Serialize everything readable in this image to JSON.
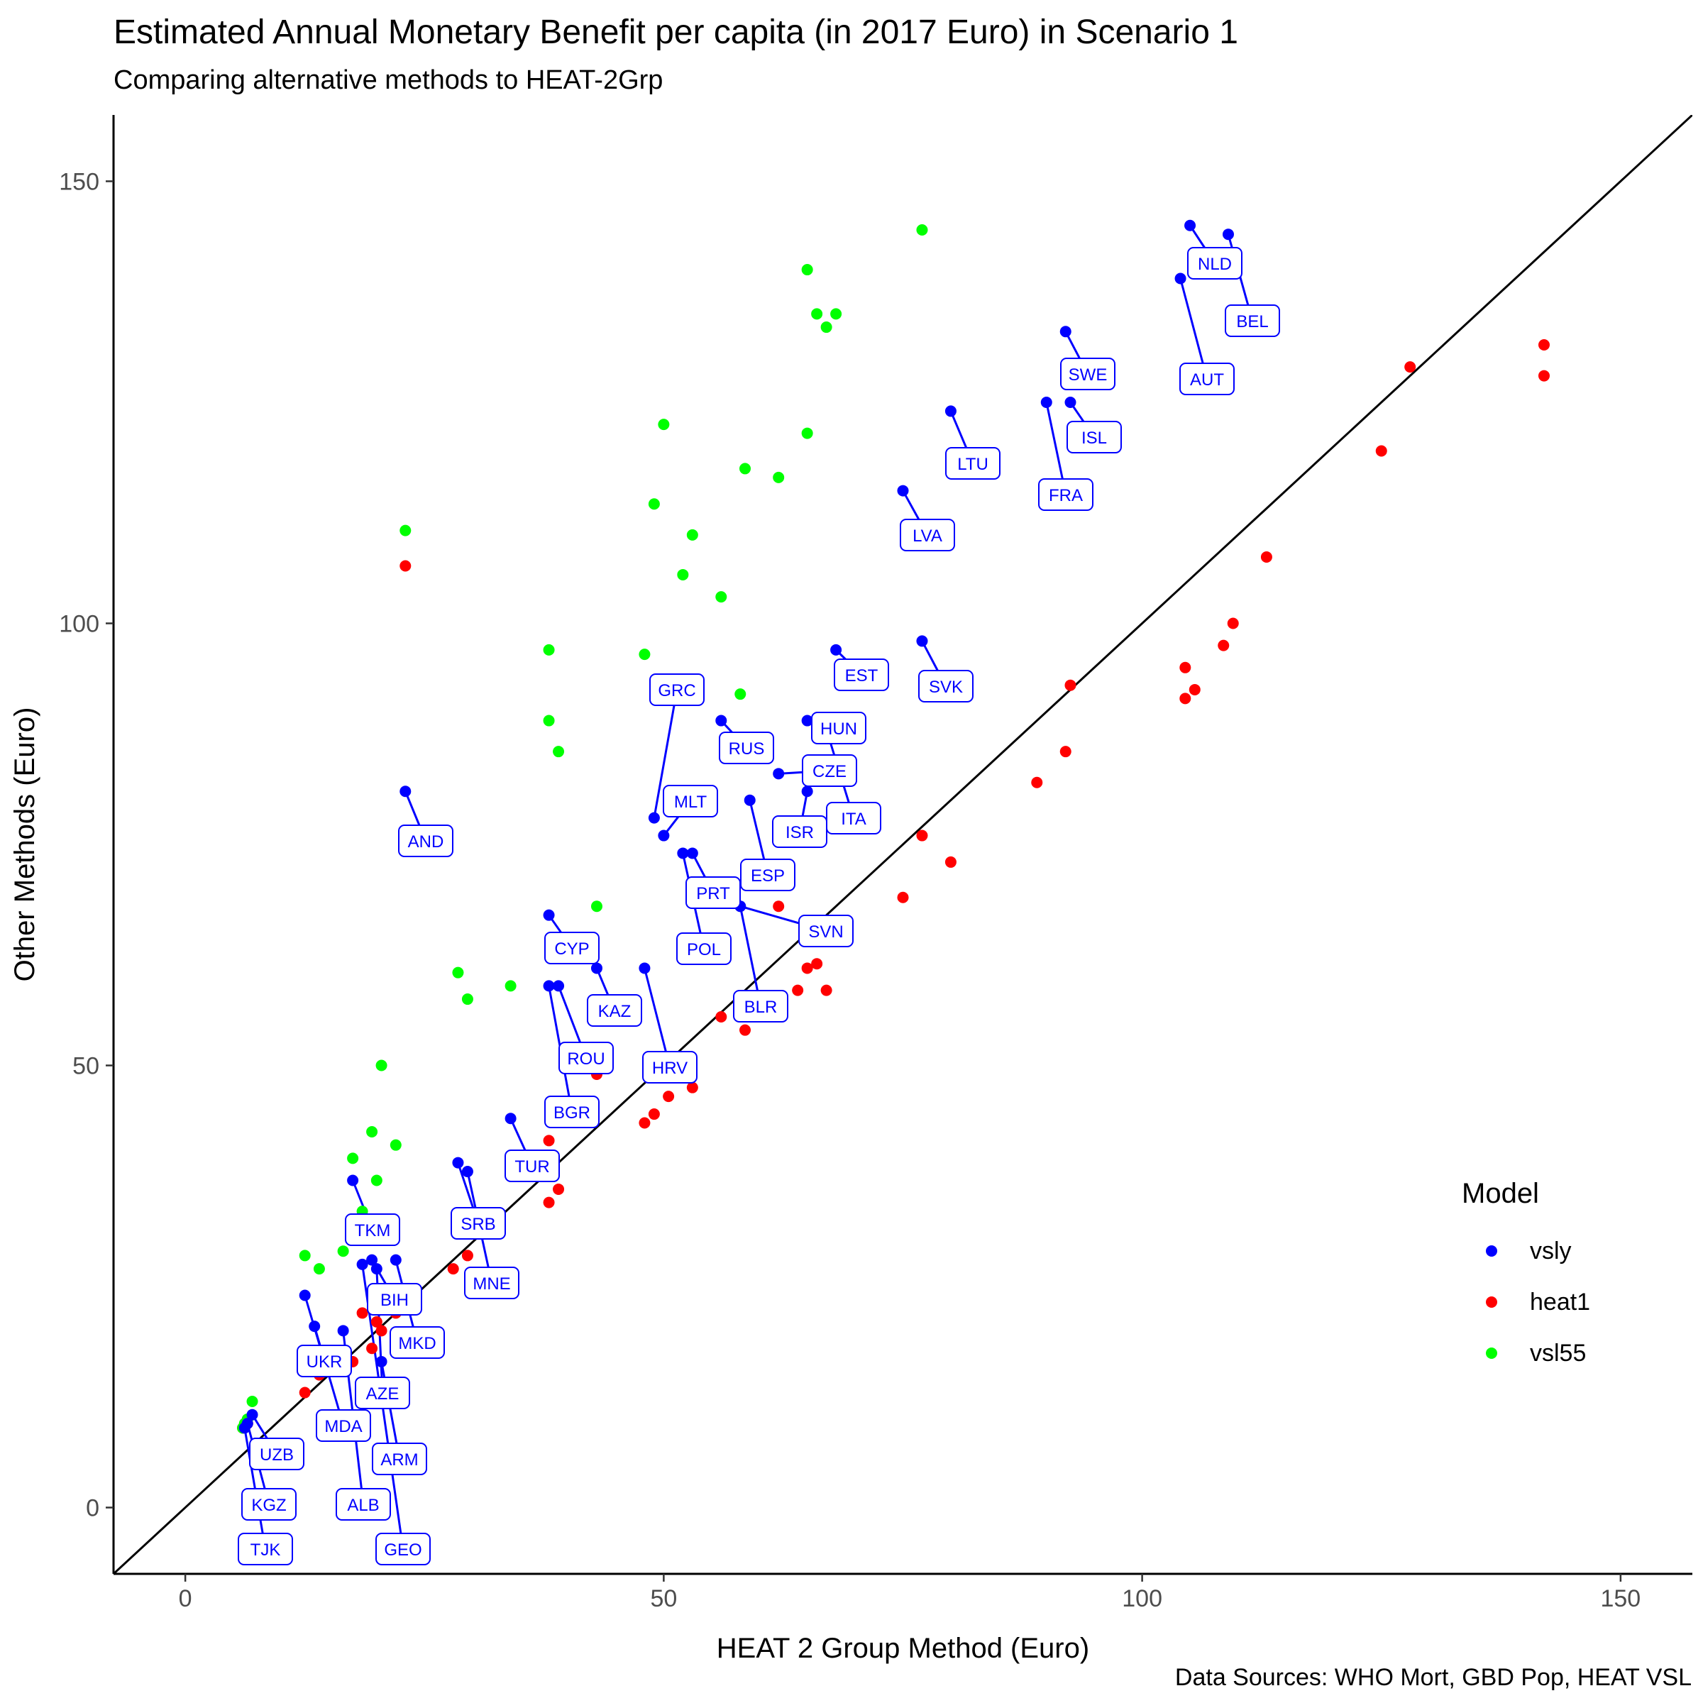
{
  "chart_data": {
    "type": "scatter",
    "title": "Estimated Annual Monetary Benefit per capita (in 2017 Euro) in Scenario 1",
    "subtitle": "Comparing alternative methods to HEAT-2Grp",
    "xlabel": "HEAT 2 Group Method (Euro)",
    "ylabel": "Other Methods (Euro)",
    "caption": "Data Sources: WHO Mort, GBD Pop, HEAT VSL",
    "xlim": [
      -7.5,
      157.5
    ],
    "ylim": [
      -7.5,
      157.5
    ],
    "xticks": [
      0,
      50,
      100,
      150
    ],
    "yticks": [
      0,
      50,
      100,
      150
    ],
    "reference_line": "y = x",
    "grid": false,
    "legend": {
      "title": "Model",
      "position": "right",
      "entries": [
        {
          "name": "vsly",
          "color": "#0000FF"
        },
        {
          "name": "heat1",
          "color": "#FF0000"
        },
        {
          "name": "vsl55",
          "color": "#00FF00"
        }
      ]
    },
    "series": [
      {
        "name": "vsly",
        "color": "#0000FF",
        "points": [
          {
            "label": "NLD",
            "x": 105,
            "y": 145
          },
          {
            "label": "BEL",
            "x": 109,
            "y": 144
          },
          {
            "label": "AUT",
            "x": 104,
            "y": 139
          },
          {
            "label": "SWE",
            "x": 92,
            "y": 133
          },
          {
            "label": "ISL",
            "x": 92.5,
            "y": 125
          },
          {
            "label": "FRA",
            "x": 90,
            "y": 125
          },
          {
            "label": "LTU",
            "x": 80,
            "y": 124
          },
          {
            "label": "LVA",
            "x": 75,
            "y": 115
          },
          {
            "label": "SVK",
            "x": 77,
            "y": 98
          },
          {
            "label": "EST",
            "x": 68,
            "y": 97
          },
          {
            "label": "HUN",
            "x": 65,
            "y": 89
          },
          {
            "label": "ITA",
            "x": 67,
            "y": 88
          },
          {
            "label": "RUS",
            "x": 56,
            "y": 89
          },
          {
            "label": "CZE",
            "x": 62,
            "y": 83
          },
          {
            "label": "ISR",
            "x": 65,
            "y": 81
          },
          {
            "label": "ESP",
            "x": 59,
            "y": 80
          },
          {
            "label": "GRC",
            "x": 49,
            "y": 78
          },
          {
            "label": "MLT",
            "x": 50,
            "y": 76
          },
          {
            "label": "PRT",
            "x": 53,
            "y": 74
          },
          {
            "label": "POL",
            "x": 52,
            "y": 74
          },
          {
            "label": "SVN",
            "x": 58,
            "y": 68
          },
          {
            "label": "BLR",
            "x": 58,
            "y": 68
          },
          {
            "label": "AND",
            "x": 23,
            "y": 81
          },
          {
            "label": "CYP",
            "x": 38,
            "y": 67
          },
          {
            "label": "KAZ",
            "x": 43,
            "y": 61
          },
          {
            "label": "HRV",
            "x": 48,
            "y": 61
          },
          {
            "label": "ROU",
            "x": 39,
            "y": 59
          },
          {
            "label": "BGR",
            "x": 38,
            "y": 59
          },
          {
            "label": "TUR",
            "x": 34,
            "y": 44
          },
          {
            "label": "SRB",
            "x": 28.5,
            "y": 39
          },
          {
            "label": "MNE",
            "x": 29.5,
            "y": 38
          },
          {
            "label": "TKM",
            "x": 17.5,
            "y": 37
          },
          {
            "label": "BIH",
            "x": 19.5,
            "y": 28
          },
          {
            "label": "MKD",
            "x": 22,
            "y": 28
          },
          {
            "label": "AZE",
            "x": 20,
            "y": 27
          },
          {
            "label": "GEO",
            "x": 18.5,
            "y": 27.5
          },
          {
            "label": "ARM",
            "x": 20.5,
            "y": 16.5
          },
          {
            "label": "UKR",
            "x": 12.5,
            "y": 24
          },
          {
            "label": "MDA",
            "x": 13.5,
            "y": 20.5
          },
          {
            "label": "ALB",
            "x": 16.5,
            "y": 20
          },
          {
            "label": "UZB",
            "x": 7,
            "y": 10.5
          },
          {
            "label": "KGZ",
            "x": 6.5,
            "y": 9.5
          },
          {
            "label": "TJK",
            "x": 6.2,
            "y": 9
          }
        ]
      },
      {
        "name": "heat1",
        "color": "#FF0000",
        "points": [
          {
            "x": 142,
            "y": 131.5
          },
          {
            "x": 142,
            "y": 128
          },
          {
            "x": 128,
            "y": 129
          },
          {
            "x": 125,
            "y": 119.5
          },
          {
            "x": 113,
            "y": 107.5
          },
          {
            "x": 109.5,
            "y": 100
          },
          {
            "x": 108.5,
            "y": 97.5
          },
          {
            "x": 104.5,
            "y": 95
          },
          {
            "x": 105.5,
            "y": 92.5
          },
          {
            "x": 104.5,
            "y": 91.5
          },
          {
            "x": 92.5,
            "y": 93
          },
          {
            "x": 92,
            "y": 85.5
          },
          {
            "x": 89,
            "y": 82
          },
          {
            "x": 77,
            "y": 76
          },
          {
            "x": 80,
            "y": 73
          },
          {
            "x": 75,
            "y": 69
          },
          {
            "x": 62,
            "y": 68
          },
          {
            "x": 66,
            "y": 61.5
          },
          {
            "x": 65,
            "y": 61
          },
          {
            "x": 67,
            "y": 58.5
          },
          {
            "x": 64,
            "y": 58.5
          },
          {
            "x": 56,
            "y": 55.5
          },
          {
            "x": 58.5,
            "y": 54
          },
          {
            "x": 23,
            "y": 106.5
          },
          {
            "x": 43,
            "y": 49
          },
          {
            "x": 53,
            "y": 47.5
          },
          {
            "x": 50.5,
            "y": 46.5
          },
          {
            "x": 49,
            "y": 44.5
          },
          {
            "x": 48,
            "y": 43.5
          },
          {
            "x": 38,
            "y": 41.5
          },
          {
            "x": 39,
            "y": 36
          },
          {
            "x": 38,
            "y": 34.5
          },
          {
            "x": 29.5,
            "y": 28.5
          },
          {
            "x": 28,
            "y": 27
          },
          {
            "x": 18.5,
            "y": 22
          },
          {
            "x": 20,
            "y": 21
          },
          {
            "x": 22,
            "y": 22
          },
          {
            "x": 20.5,
            "y": 20
          },
          {
            "x": 17.5,
            "y": 16.5
          },
          {
            "x": 19.5,
            "y": 18
          },
          {
            "x": 14,
            "y": 15
          },
          {
            "x": 12.5,
            "y": 13
          },
          {
            "x": 6.5,
            "y": 9.5
          },
          {
            "x": 6,
            "y": 9
          }
        ]
      },
      {
        "name": "vsl55",
        "color": "#00FF00",
        "points": [
          {
            "x": 77,
            "y": 144.5
          },
          {
            "x": 65,
            "y": 140
          },
          {
            "x": 66,
            "y": 135
          },
          {
            "x": 68,
            "y": 135
          },
          {
            "x": 67,
            "y": 133.5
          },
          {
            "x": 50,
            "y": 122.5
          },
          {
            "x": 65,
            "y": 121.5
          },
          {
            "x": 58.5,
            "y": 117.5
          },
          {
            "x": 62,
            "y": 116.5
          },
          {
            "x": 49,
            "y": 113.5
          },
          {
            "x": 53,
            "y": 110
          },
          {
            "x": 52,
            "y": 105.5
          },
          {
            "x": 56,
            "y": 103
          },
          {
            "x": 23,
            "y": 110.5
          },
          {
            "x": 38,
            "y": 97
          },
          {
            "x": 48,
            "y": 96.5
          },
          {
            "x": 58,
            "y": 92
          },
          {
            "x": 38,
            "y": 89
          },
          {
            "x": 39,
            "y": 85.5
          },
          {
            "x": 43,
            "y": 68
          },
          {
            "x": 28.5,
            "y": 60.5
          },
          {
            "x": 29.5,
            "y": 57.5
          },
          {
            "x": 34,
            "y": 59
          },
          {
            "x": 20.5,
            "y": 50
          },
          {
            "x": 19.5,
            "y": 42.5
          },
          {
            "x": 22,
            "y": 41
          },
          {
            "x": 17.5,
            "y": 39.5
          },
          {
            "x": 20,
            "y": 37
          },
          {
            "x": 18.5,
            "y": 33.5
          },
          {
            "x": 16.5,
            "y": 29
          },
          {
            "x": 12.5,
            "y": 28.5
          },
          {
            "x": 14,
            "y": 27
          },
          {
            "x": 7,
            "y": 12
          },
          {
            "x": 6.5,
            "y": 10
          },
          {
            "x": 6.2,
            "y": 9.5
          },
          {
            "x": 6,
            "y": 9
          }
        ]
      }
    ]
  }
}
